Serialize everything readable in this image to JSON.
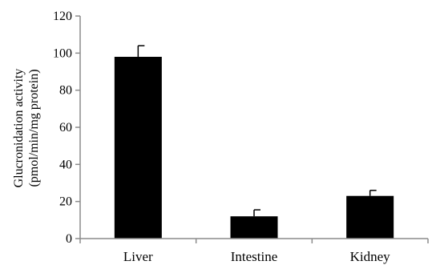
{
  "chart_data": {
    "type": "bar",
    "title": "",
    "xlabel": "",
    "ylabel_lines": [
      "Glucronidation activity",
      "(pmol/min/mg protein)"
    ],
    "categories": [
      "Liver",
      "Intestine",
      "Kidney"
    ],
    "values": [
      98,
      12,
      23
    ],
    "errors": [
      6,
      3.5,
      3
    ],
    "ylim": [
      0,
      120
    ],
    "yticks": [
      0,
      20,
      40,
      60,
      80,
      100,
      120
    ],
    "grid": false,
    "legend": "none",
    "bar_color": "#000000"
  }
}
